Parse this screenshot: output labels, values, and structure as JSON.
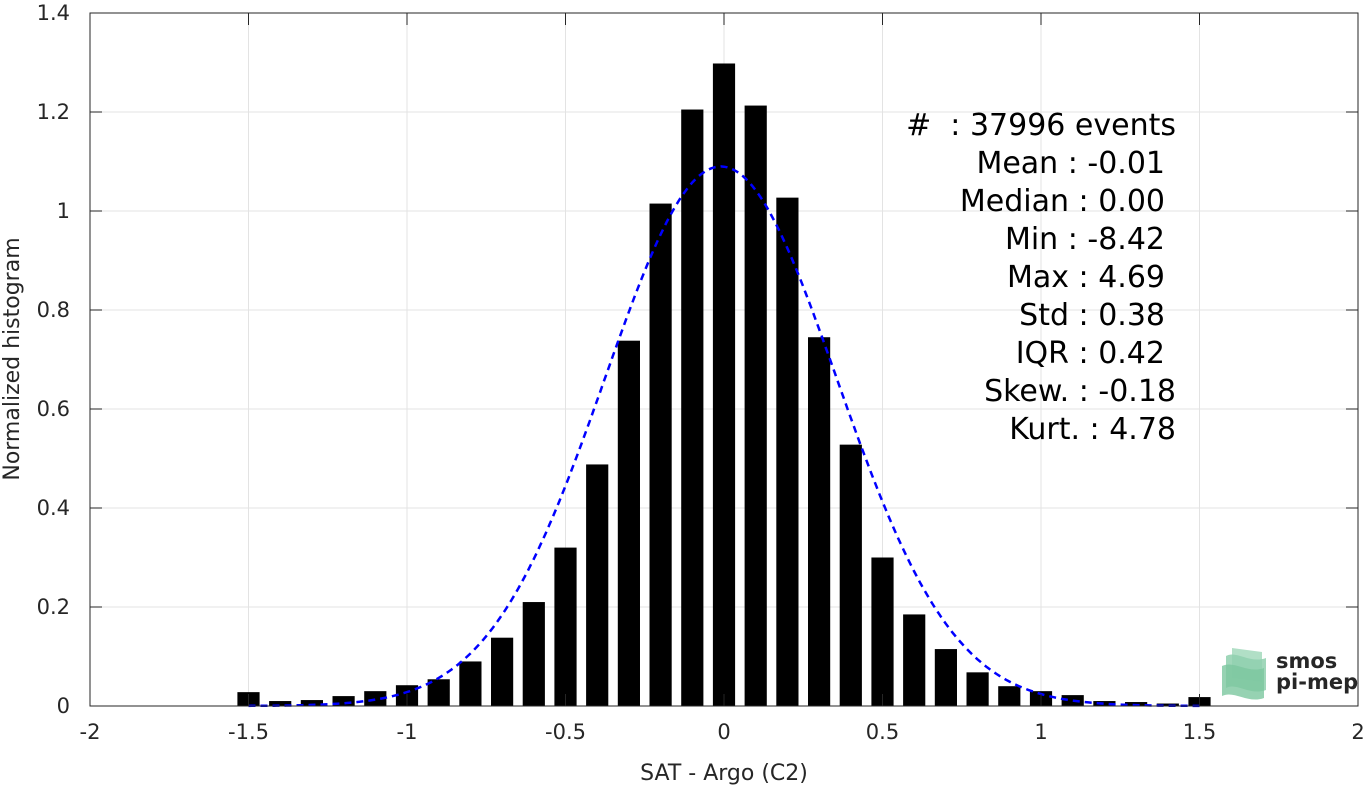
{
  "chart_data": {
    "type": "bar",
    "xlabel": "SAT - Argo (C2)",
    "ylabel": "Normalized histogram",
    "xlim": [
      -2,
      2
    ],
    "ylim": [
      0,
      1.4
    ],
    "grid": true,
    "x_ticks": [
      -2,
      -1.5,
      -1,
      -0.5,
      0,
      0.5,
      1,
      1.5,
      2
    ],
    "x_tick_labels": [
      "-2",
      "-1.5",
      "-1",
      "-0.5",
      "0",
      "0.5",
      "1",
      "1.5",
      "2"
    ],
    "y_ticks": [
      0,
      0.2,
      0.4,
      0.6,
      0.8,
      1,
      1.2,
      1.4
    ],
    "y_tick_labels": [
      "0",
      "0.2",
      "0.4",
      "0.6",
      "0.8",
      "1",
      "1.2",
      "1.4"
    ],
    "bar_width": 0.07,
    "bars": {
      "x": [
        -1.5,
        -1.4,
        -1.3,
        -1.2,
        -1.1,
        -1.0,
        -0.9,
        -0.8,
        -0.7,
        -0.6,
        -0.5,
        -0.4,
        -0.3,
        -0.2,
        -0.1,
        0.0,
        0.1,
        0.2,
        0.3,
        0.4,
        0.5,
        0.6,
        0.7,
        0.8,
        0.9,
        1.0,
        1.1,
        1.2,
        1.3,
        1.4,
        1.5
      ],
      "values": [
        0.028,
        0.01,
        0.012,
        0.02,
        0.03,
        0.042,
        0.054,
        0.09,
        0.138,
        0.21,
        0.32,
        0.488,
        0.738,
        1.015,
        1.205,
        1.298,
        1.213,
        1.027,
        0.745,
        0.528,
        0.3,
        0.185,
        0.115,
        0.068,
        0.04,
        0.03,
        0.022,
        0.01,
        0.008,
        0.005,
        0.018
      ],
      "color": "#000000"
    },
    "fit_curve": {
      "style": "dashed",
      "color": "#0000ff",
      "mean": -0.01,
      "std": 0.366,
      "peak": 1.09,
      "x_range": [
        -1.5,
        1.5
      ]
    }
  },
  "stats": [
    {
      "label": "#  : 37996 events"
    },
    {
      "label": "Mean : -0.01"
    },
    {
      "label": "Median : 0.00"
    },
    {
      "label": "Min : -8.42"
    },
    {
      "label": "Max : 4.69"
    },
    {
      "label": "Std : 0.38"
    },
    {
      "label": "IQR : 0.42"
    },
    {
      "label": "Skew. : -0.18"
    },
    {
      "label": "Kurt. : 4.78"
    }
  ],
  "logo": {
    "line1": "smos",
    "line2": "pi-mep",
    "icon": "layered-ocean-icon",
    "color": "#7cc79f"
  }
}
